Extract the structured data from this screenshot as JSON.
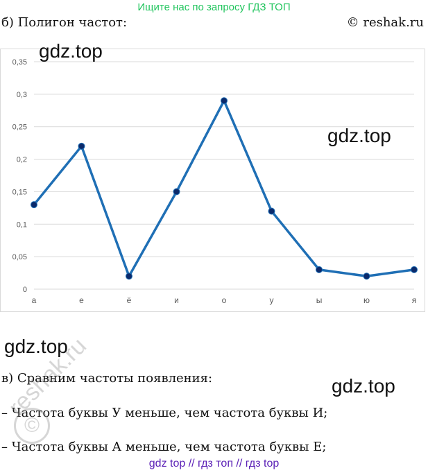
{
  "banner": "Ищите нас по запросу ГДЗ ТОП",
  "section_b_title": "б) Полигон частот:",
  "copyright": "© reshak.ru",
  "watermarks": {
    "top_left": "gdz.top",
    "right": "gdz.top",
    "middle_left": "gdz.top",
    "middle_right": "gdz.top"
  },
  "section_v": {
    "title": "в) Сравним частоты появления:",
    "lines": [
      "– Частота буквы У меньше, чем частота буквы И;",
      "– Частота буквы А меньше, чем частота буквы Е;"
    ]
  },
  "stamp": {
    "text": "reshak.ru",
    "symbol": "©"
  },
  "footer": "gdz top  //  гдз топ  //  гдз top",
  "chart_data": {
    "type": "line",
    "title": "",
    "xlabel": "",
    "ylabel": "",
    "categories": [
      "а",
      "е",
      "ё",
      "и",
      "о",
      "у",
      "ы",
      "ю",
      "я"
    ],
    "series": [
      {
        "values": [
          0.13,
          0.22,
          0.02,
          0.15,
          0.29,
          0.12,
          0.03,
          0.02,
          0.03
        ]
      }
    ],
    "ylim": [
      0,
      0.35
    ],
    "yticks": [
      "0",
      "0,05",
      "0,1",
      "0,15",
      "0,2",
      "0,25",
      "0,3",
      "0,35"
    ],
    "grid": true,
    "line_color": "#1f6fb5",
    "marker_color": "#0b2a6b"
  }
}
